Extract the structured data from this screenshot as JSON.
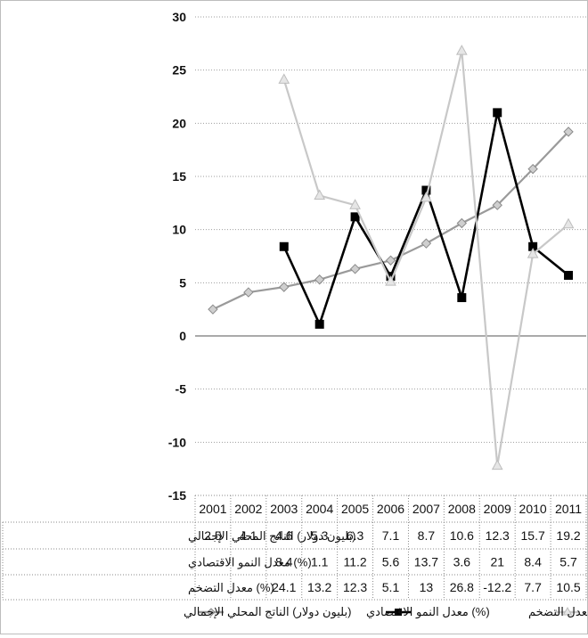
{
  "chart_data": {
    "type": "line",
    "title": "",
    "xlabel": "",
    "ylabel": "",
    "ylim": [
      -15,
      30
    ],
    "yticks": [
      30,
      25,
      20,
      15,
      10,
      5,
      0,
      -5,
      -10,
      -15
    ],
    "grid": true,
    "legend_position": "bottom",
    "categories": [
      "2001",
      "2002",
      "2003",
      "2004",
      "2005",
      "2006",
      "2007",
      "2008",
      "2009",
      "2010",
      "2011"
    ],
    "series": [
      {
        "name": "(بليون دولار) الناتج المحلي الإجمالي",
        "values": [
          2.5,
          4.1,
          4.6,
          5.3,
          6.3,
          7.1,
          8.7,
          10.6,
          12.3,
          15.7,
          19.2
        ],
        "labels": [
          "2.5",
          "4.1",
          "4.6",
          "5.3",
          "6.3",
          "7.1",
          "8.7",
          "10.6",
          "12.3",
          "15.7",
          "19.2"
        ],
        "color": "#9a9a9a",
        "marker": "diamond"
      },
      {
        "name": "(%) معدل النمو الاقتصادي",
        "values": [
          null,
          null,
          8.4,
          1.1,
          11.2,
          5.6,
          13.7,
          3.6,
          21,
          8.4,
          5.7
        ],
        "labels": [
          "",
          "",
          "8.4",
          "1.1",
          "11.2",
          "5.6",
          "13.7",
          "3.6",
          "21",
          "8.4",
          "5.7"
        ],
        "color": "#000000",
        "marker": "square"
      },
      {
        "name": "(%) معدل التضخم",
        "values": [
          null,
          null,
          24.1,
          13.2,
          12.3,
          5.1,
          13,
          26.8,
          -12.2,
          7.7,
          10.5
        ],
        "labels": [
          "",
          "",
          "24.1",
          "13.2",
          "12.3",
          "5.1",
          "13",
          "26.8",
          "-12.2",
          "7.7",
          "10.5"
        ],
        "color": "#c8c8c8",
        "marker": "triangle"
      }
    ]
  }
}
